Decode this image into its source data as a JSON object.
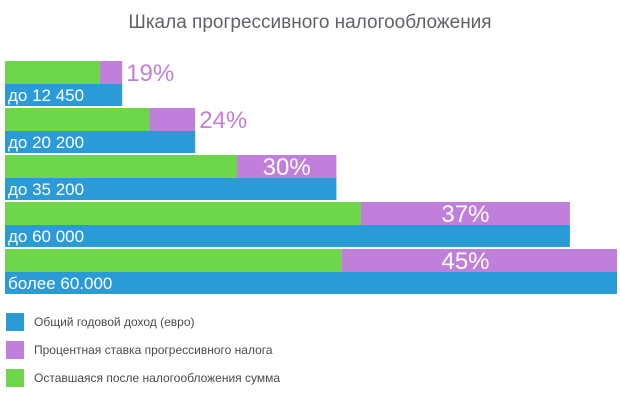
{
  "chart_data": {
    "type": "bar",
    "title": "Шкала прогрессивного налогообложения",
    "categories": [
      "до 12 450",
      "до 20 200",
      "до 35 200",
      "до 60 000",
      "более 60.000"
    ],
    "series": [
      {
        "name": "Общий годовой доход (евро)",
        "values": [
          12450,
          20200,
          35200,
          60000,
          65000
        ]
      },
      {
        "name": "Процентная ставка прогрессивного налога",
        "values": [
          19,
          24,
          30,
          37,
          45
        ],
        "labels": [
          "19%",
          "24%",
          "30%",
          "37%",
          "45%"
        ]
      },
      {
        "name": "Оставшаяся после налогообложения сумма",
        "values": [
          10084.5,
          15352,
          24640,
          37800,
          35750
        ]
      }
    ],
    "colors": {
      "income": "#2a9bd6",
      "tax": "#c17fdc",
      "remaining": "#6dd64a"
    },
    "max_value": 65000
  }
}
